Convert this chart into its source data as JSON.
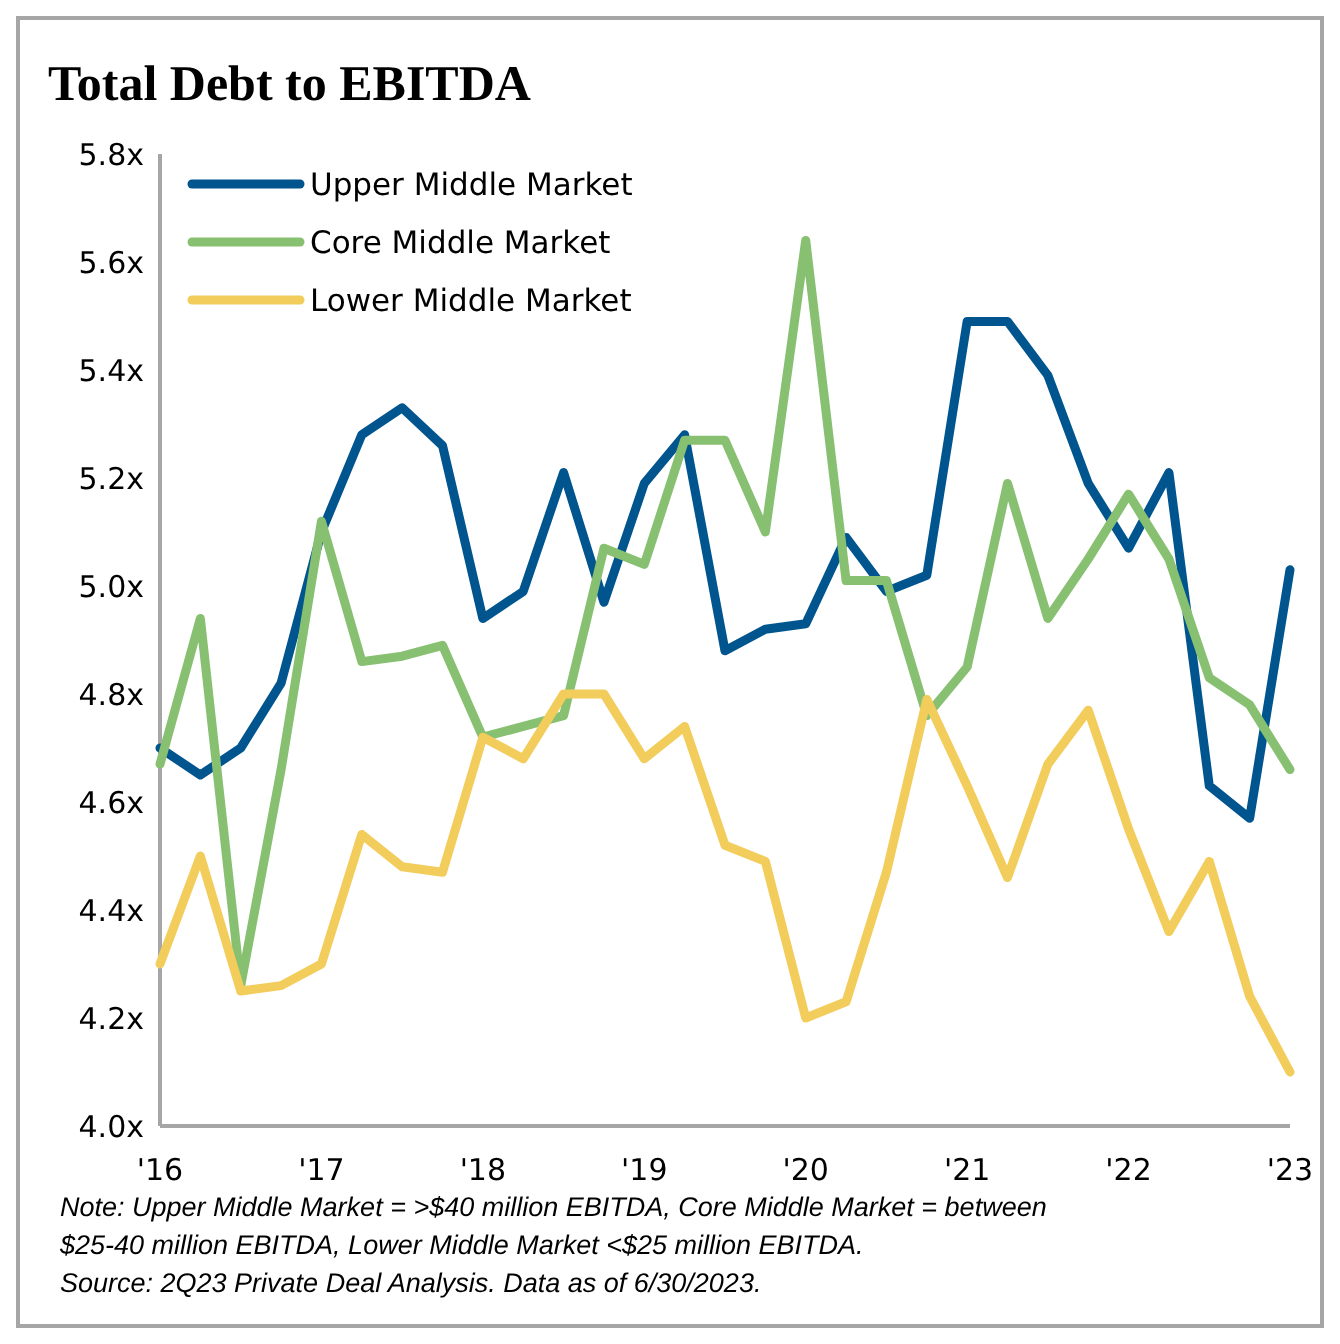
{
  "chart_data": {
    "type": "line",
    "title": "Total Debt to EBITDA",
    "x": [
      2016,
      2016.25,
      2016.5,
      2016.75,
      2017,
      2017.25,
      2017.5,
      2017.75,
      2018,
      2018.25,
      2018.5,
      2018.75,
      2019,
      2019.25,
      2019.5,
      2019.75,
      2020,
      2020.25,
      2020.5,
      2020.75,
      2021,
      2021.25,
      2021.5,
      2021.75,
      2022,
      2022.25,
      2022.5,
      2022.75,
      2023
    ],
    "series": [
      {
        "name": "Upper Middle Market",
        "color": "#00558f",
        "values": [
          4.7,
          4.65,
          4.7,
          4.82,
          5.1,
          5.28,
          5.33,
          5.26,
          4.94,
          4.99,
          5.21,
          4.97,
          5.19,
          5.28,
          4.88,
          4.92,
          4.93,
          5.09,
          4.99,
          5.02,
          5.49,
          5.49,
          5.39,
          5.19,
          5.07,
          5.21,
          4.63,
          4.57,
          5.03
        ]
      },
      {
        "name": "Core Middle Market",
        "color": "#88c072",
        "values": [
          4.67,
          4.94,
          4.26,
          4.66,
          5.12,
          4.86,
          4.87,
          4.89,
          4.72,
          4.74,
          4.76,
          5.07,
          5.04,
          5.27,
          5.27,
          5.1,
          5.64,
          5.01,
          5.01,
          4.76,
          4.85,
          5.19,
          4.94,
          5.05,
          5.17,
          5.05,
          4.83,
          4.78,
          4.66
        ]
      },
      {
        "name": "Lower Middle Market",
        "color": "#f2cd5c",
        "values": [
          4.3,
          4.5,
          4.25,
          4.26,
          4.3,
          4.54,
          4.48,
          4.47,
          4.72,
          4.68,
          4.8,
          4.8,
          4.68,
          4.74,
          4.52,
          4.49,
          4.2,
          4.23,
          4.47,
          4.79,
          4.63,
          4.46,
          4.67,
          4.77,
          4.55,
          4.36,
          4.49,
          4.24,
          4.1
        ]
      }
    ],
    "xlim": [
      2016,
      2023
    ],
    "xticks": [
      {
        "value": 2016,
        "label": "'16"
      },
      {
        "value": 2017,
        "label": "'17"
      },
      {
        "value": 2018,
        "label": "'18"
      },
      {
        "value": 2019,
        "label": "'19"
      },
      {
        "value": 2020,
        "label": "'20"
      },
      {
        "value": 2021,
        "label": "'21"
      },
      {
        "value": 2022,
        "label": "'22"
      },
      {
        "value": 2023,
        "label": "'23"
      }
    ],
    "ylim": [
      4.0,
      5.8
    ],
    "yticks": [
      {
        "value": 4.0,
        "label": "4.0x"
      },
      {
        "value": 4.2,
        "label": "4.2x"
      },
      {
        "value": 4.4,
        "label": "4.4x"
      },
      {
        "value": 4.6,
        "label": "4.6x"
      },
      {
        "value": 4.8,
        "label": "4.8x"
      },
      {
        "value": 5.0,
        "label": "5.0x"
      },
      {
        "value": 5.2,
        "label": "5.2x"
      },
      {
        "value": 5.4,
        "label": "5.4x"
      },
      {
        "value": 5.6,
        "label": "5.6x"
      },
      {
        "value": 5.8,
        "label": "5.8x"
      }
    ],
    "grid": false,
    "legend": "top left",
    "marker": "none",
    "line_style": "solid",
    "annotations": [
      "Note: Upper Middle Market = >$40 million EBITDA, Core Middle Market = between $25-40 million EBITDA, Lower Middle Market <$25 million EBITDA.",
      "Source: 2Q23 Private Deal Analysis. Data as of 6/30/2023."
    ]
  }
}
